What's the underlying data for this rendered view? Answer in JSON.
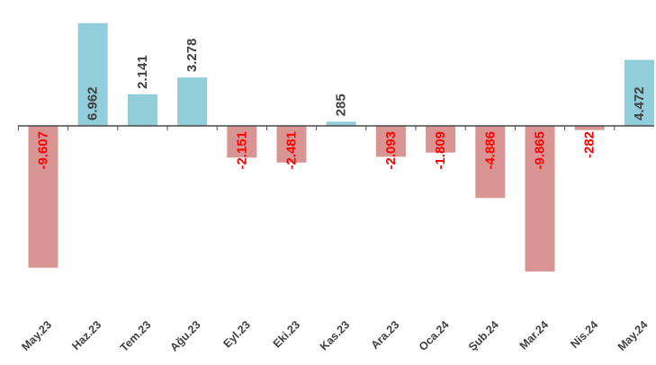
{
  "chart_data": {
    "type": "bar",
    "categories": [
      "May.23",
      "Haz.23",
      "Tem.23",
      "Ağu.23",
      "Eyl.23",
      "Eki.23",
      "Kas.23",
      "Ara.23",
      "Oca.24",
      "Şub.24",
      "Mar.24",
      "Nis.24",
      "May.24"
    ],
    "values": [
      -9607,
      6962,
      2141,
      3278,
      -2151,
      -2481,
      285,
      -2093,
      -1809,
      -4886,
      -9865,
      -282,
      4472
    ],
    "labels": [
      "-9.607",
      "6.962",
      "2.141",
      "3.278",
      "-2.151",
      "-2.481",
      "285",
      "-2.093",
      "-1.809",
      "-4.886",
      "-9.865",
      "-282",
      "4.472"
    ],
    "title": "",
    "xlabel": "",
    "ylabel": "",
    "ylim": [
      -10000,
      7000
    ],
    "grid": false,
    "legend": "none"
  },
  "colors": {
    "positive_bar": "#92CDDC",
    "negative_bar": "#D99594",
    "positive_label": "#404040",
    "negative_label": "#FF0000",
    "axis": "#4a4a4a"
  }
}
